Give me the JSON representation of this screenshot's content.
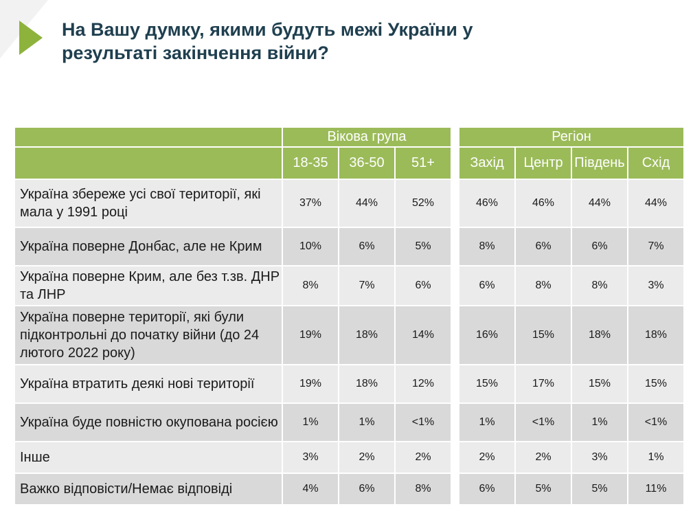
{
  "header": {
    "title": "На Вашу думку, якими будуть межі України у результаті закінчення війни?"
  },
  "table": {
    "groups": [
      {
        "label": "Вікова група",
        "columns": [
          "18-35",
          "36-50",
          "51+"
        ]
      },
      {
        "label": "Регіон",
        "columns": [
          "Захід",
          "Центр",
          "Південь",
          "Схід"
        ]
      }
    ],
    "rows": [
      {
        "label": "Україна збереже усі свої території, які мала у 1991 році",
        "values": [
          "37%",
          "44%",
          "52%",
          "46%",
          "46%",
          "44%",
          "44%"
        ]
      },
      {
        "label": "Україна поверне Донбас, але не Крим",
        "values": [
          "10%",
          "6%",
          "5%",
          "8%",
          "6%",
          "6%",
          "7%"
        ]
      },
      {
        "label": "Україна поверне Крим, але без т.зв. ДНР та ЛНР",
        "values": [
          "8%",
          "7%",
          "6%",
          "6%",
          "8%",
          "8%",
          "3%"
        ]
      },
      {
        "label": "Україна поверне території, які були підконтрольні до початку війни (до 24 лютого 2022 року)",
        "values": [
          "19%",
          "18%",
          "14%",
          "16%",
          "15%",
          "18%",
          "18%"
        ]
      },
      {
        "label": "Україна втратить деякі нові території",
        "values": [
          "19%",
          "18%",
          "12%",
          "15%",
          "17%",
          "15%",
          "15%"
        ]
      },
      {
        "label": "Україна буде повністю окупована росією",
        "values": [
          "1%",
          "1%",
          "<1%",
          "1%",
          "<1%",
          "1%",
          "<1%"
        ]
      },
      {
        "label": "Інше",
        "values": [
          "3%",
          "2%",
          "2%",
          "2%",
          "2%",
          "3%",
          "1%"
        ]
      },
      {
        "label": "Важко відповісти/Немає відповіді",
        "values": [
          "4%",
          "6%",
          "8%",
          "6%",
          "5%",
          "5%",
          "11%"
        ]
      }
    ]
  }
}
